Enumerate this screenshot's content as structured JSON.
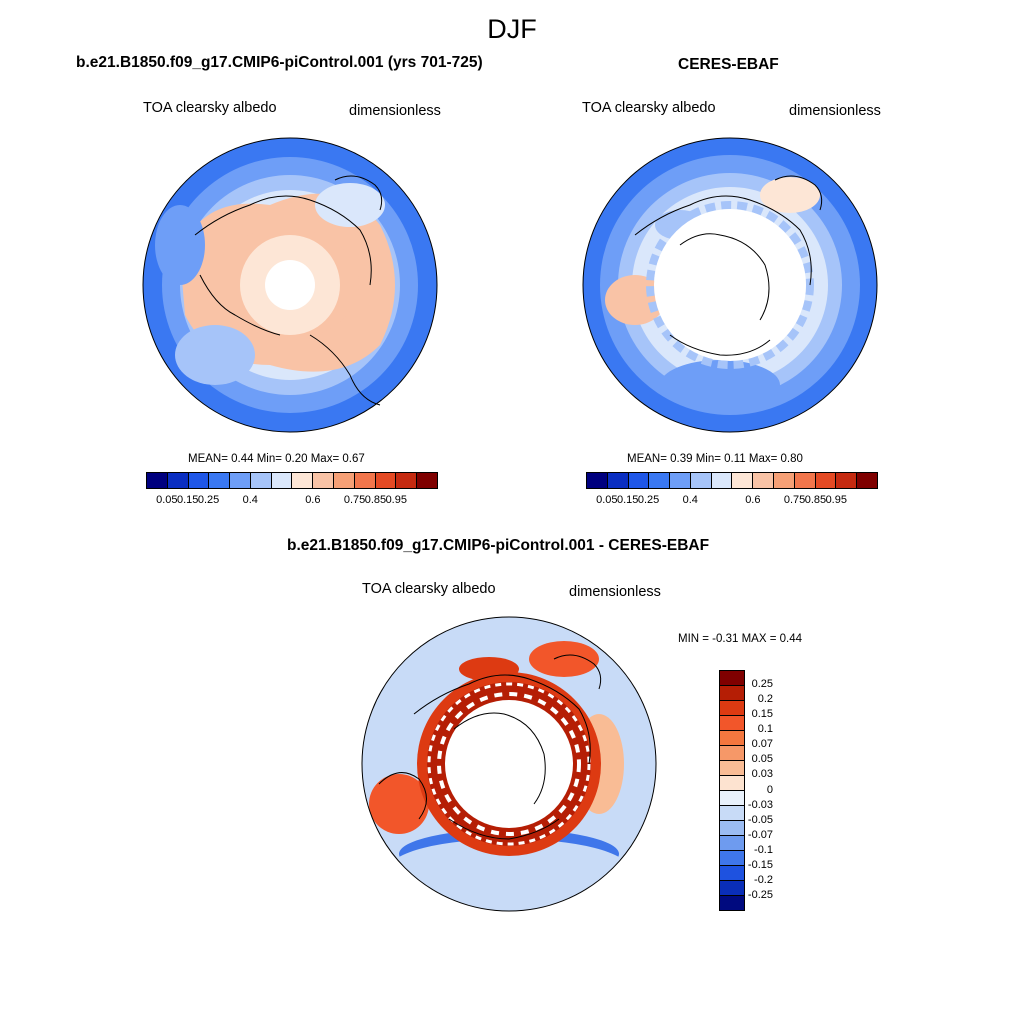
{
  "figure": {
    "title": "DJF"
  },
  "panels": [
    {
      "title": "b.e21.B1850.f09_g17.CMIP6-piControl.001 (yrs 701-725)",
      "variable": "TOA clearsky albedo",
      "units": "dimensionless",
      "stats": "MEAN=   0.44  Min=   0.20  Max=   0.67"
    },
    {
      "title": "CERES-EBAF",
      "variable": "TOA clearsky albedo",
      "units": "dimensionless",
      "stats": "MEAN=   0.39  Min=   0.11  Max=   0.80"
    }
  ],
  "difference": {
    "title": "b.e21.B1850.f09_g17.CMIP6-piControl.001 - CERES-EBAF",
    "variable": "TOA clearsky albedo",
    "units": "dimensionless",
    "minmax": "MIN =  -0.31 MAX =   0.44"
  },
  "colorbar_abs": {
    "colors": [
      "#00007f",
      "#0a2ec2",
      "#1f57e8",
      "#3a78f2",
      "#6e9ef7",
      "#a6c4f9",
      "#dae7fb",
      "#fde6d6",
      "#f9c3a6",
      "#f6a076",
      "#f2764c",
      "#e44a24",
      "#c52a10",
      "#7f0000"
    ],
    "ticks": [
      "0.05",
      "0.15",
      "0.25",
      "0.4",
      "0.6",
      "0.75",
      "0.85",
      "0.95"
    ]
  },
  "colorbar_diff": {
    "colors": [
      "#7f0000",
      "#b51e05",
      "#dd3a12",
      "#f2562a",
      "#f4773f",
      "#f69868",
      "#f9bc95",
      "#fde3d0",
      "#e9f1fb",
      "#c8dbf7",
      "#9bbcf2",
      "#6e9bef",
      "#3f76ea",
      "#1e52e0",
      "#0a2eb8",
      "#000a7f"
    ],
    "ticks": [
      "0.25",
      "0.2",
      "0.15",
      "0.1",
      "0.07",
      "0.05",
      "0.03",
      "0",
      "-0.03",
      "-0.05",
      "-0.07",
      "-0.1",
      "-0.15",
      "-0.2",
      "-0.25"
    ]
  }
}
